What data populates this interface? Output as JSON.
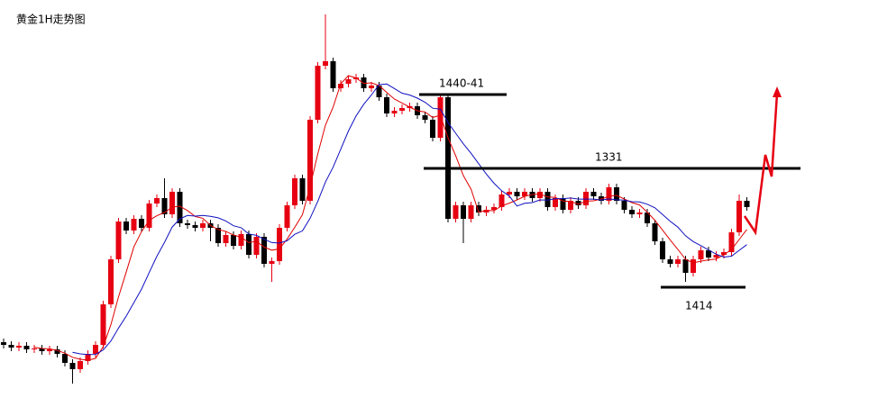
{
  "chart_data": {
    "type": "candlestick",
    "title": "黄金1H走势图",
    "up_color": "#e60012",
    "down_color": "#000000",
    "ma": [
      {
        "period": 5,
        "color": "#e00000"
      },
      {
        "period": 10,
        "color": "#1010c0"
      }
    ],
    "ylim": [
      0,
      438
    ],
    "annotations": [
      "1440-41",
      "1331",
      "1414"
    ],
    "open": [
      58,
      55,
      52,
      54,
      50,
      51,
      48,
      50,
      45,
      35,
      28,
      37,
      45,
      55,
      100,
      150,
      192,
      182,
      195,
      185,
      212,
      218,
      200,
      225,
      190,
      188,
      185,
      190,
      185,
      168,
      177,
      165,
      178,
      155,
      175,
      145,
      148,
      185,
      210,
      240,
      215,
      305,
      365,
      370,
      340,
      345,
      350,
      352,
      340,
      343,
      330,
      312,
      315,
      318,
      320,
      310,
      305,
      285,
      330,
      195,
      210,
      195,
      210,
      202,
      205,
      208,
      222,
      225,
      220,
      225,
      218,
      225,
      208,
      218,
      205,
      215,
      210,
      225,
      220,
      215,
      230,
      215,
      205,
      200,
      202,
      190,
      170,
      150,
      145,
      150,
      135,
      150,
      160,
      152,
      155,
      158,
      180,
      215
    ],
    "high": [
      62,
      59,
      58,
      58,
      55,
      55,
      54,
      54,
      49,
      39,
      41,
      49,
      59,
      104,
      154,
      196,
      196,
      199,
      199,
      216,
      222,
      240,
      229,
      229,
      194,
      192,
      194,
      194,
      189,
      181,
      181,
      182,
      182,
      179,
      179,
      152,
      189,
      214,
      244,
      244,
      309,
      369,
      422,
      374,
      349,
      354,
      356,
      356,
      347,
      347,
      334,
      319,
      322,
      324,
      324,
      314,
      309,
      334,
      334,
      214,
      214,
      214,
      214,
      209,
      212,
      226,
      229,
      229,
      229,
      229,
      229,
      229,
      222,
      222,
      219,
      219,
      229,
      229,
      224,
      234,
      234,
      219,
      209,
      206,
      206,
      194,
      174,
      154,
      154,
      154,
      154,
      164,
      164,
      159,
      162,
      184,
      222,
      219
    ],
    "low": [
      51,
      48,
      48,
      46,
      46,
      44,
      44,
      41,
      31,
      12,
      24,
      33,
      41,
      51,
      96,
      146,
      178,
      178,
      181,
      181,
      208,
      196,
      196,
      186,
      184,
      181,
      181,
      170,
      164,
      164,
      161,
      161,
      151,
      151,
      141,
      125,
      144,
      181,
      206,
      211,
      211,
      301,
      361,
      336,
      336,
      341,
      346,
      336,
      336,
      326,
      308,
      308,
      311,
      314,
      306,
      301,
      281,
      281,
      191,
      191,
      168,
      191,
      198,
      198,
      201,
      204,
      218,
      216,
      216,
      214,
      214,
      204,
      204,
      201,
      201,
      206,
      206,
      216,
      211,
      211,
      211,
      201,
      196,
      196,
      186,
      166,
      146,
      141,
      141,
      125,
      131,
      146,
      148,
      148,
      151,
      154,
      176,
      204
    ],
    "close": [
      55,
      52,
      54,
      50,
      51,
      48,
      50,
      45,
      35,
      28,
      37,
      45,
      55,
      100,
      150,
      192,
      182,
      195,
      185,
      212,
      218,
      200,
      225,
      190,
      188,
      185,
      190,
      185,
      168,
      177,
      165,
      178,
      155,
      175,
      145,
      148,
      185,
      210,
      240,
      215,
      305,
      365,
      370,
      340,
      345,
      350,
      352,
      340,
      343,
      330,
      312,
      315,
      318,
      320,
      310,
      305,
      285,
      330,
      195,
      210,
      195,
      210,
      202,
      205,
      208,
      222,
      225,
      220,
      225,
      218,
      225,
      208,
      218,
      205,
      215,
      210,
      225,
      220,
      215,
      230,
      215,
      205,
      200,
      202,
      190,
      170,
      150,
      145,
      150,
      135,
      150,
      160,
      152,
      155,
      158,
      180,
      215,
      208
    ]
  }
}
